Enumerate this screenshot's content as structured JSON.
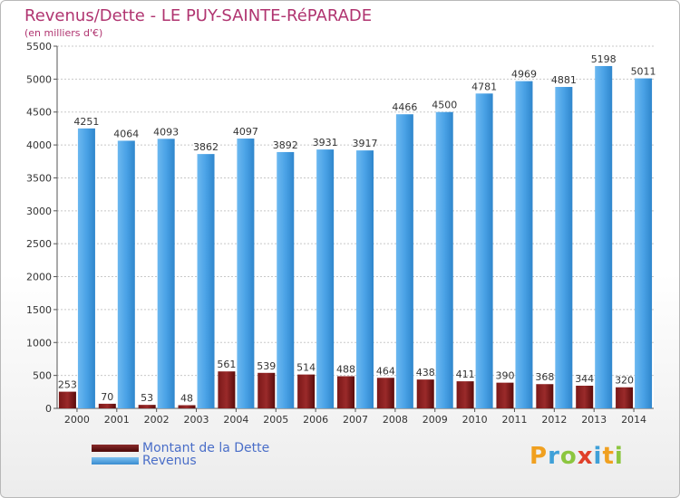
{
  "chart_data": {
    "type": "bar",
    "title": "Revenus/Dette - LE PUY-SAINTE-RéPARADE",
    "subtitle": "(en milliers d'€)",
    "categories": [
      "2000",
      "2001",
      "2002",
      "2003",
      "2004",
      "2005",
      "2006",
      "2007",
      "2008",
      "2009",
      "2010",
      "2011",
      "2012",
      "2013",
      "2014"
    ],
    "series": [
      {
        "name": "Montant de la Dette",
        "color": "#7b1c1c",
        "values": [
          253,
          70,
          53,
          48,
          561,
          539,
          514,
          488,
          464,
          438,
          411,
          390,
          368,
          344,
          320
        ]
      },
      {
        "name": "Revenus",
        "color": "#4a9ee0",
        "values": [
          4251,
          4064,
          4093,
          3862,
          4097,
          3892,
          3931,
          3917,
          4466,
          4500,
          4781,
          4969,
          4881,
          5198,
          5011
        ]
      }
    ],
    "yticks": [
      0,
      500,
      1000,
      1500,
      2000,
      2500,
      3000,
      3500,
      4000,
      4500,
      5000,
      5500
    ],
    "ylim": [
      0,
      5500
    ],
    "grid": true,
    "legend_position": "bottom-left"
  },
  "legend": {
    "debt_label": "Montant de la Dette",
    "revenue_label": "Revenus"
  },
  "logo": {
    "letters": [
      "P",
      "r",
      "o",
      "x",
      "i",
      "t",
      "i"
    ],
    "colors": [
      "#f0a020",
      "#3fa0d8",
      "#8cc63f",
      "#e0402a",
      "#3fa0d8",
      "#f0a020",
      "#8cc63f"
    ]
  }
}
